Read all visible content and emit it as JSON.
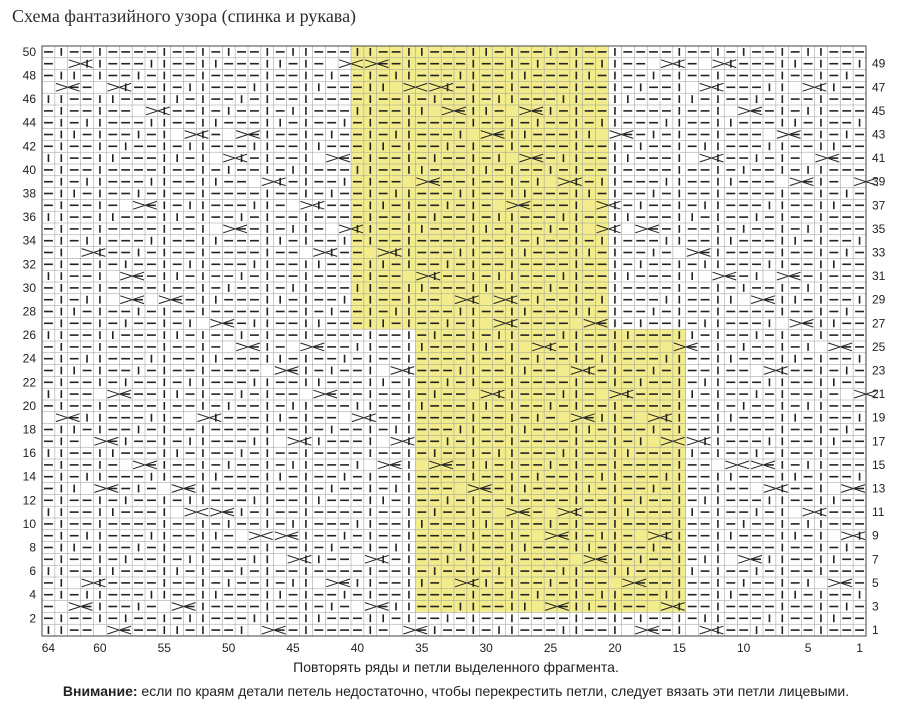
{
  "title": "Схема фантазийного узора (спинка и рукава)",
  "footer": {
    "line1": "Повторять ряды и петли выделенного фрагмента.",
    "attention_label": "Внимание:",
    "attention_text": " если по краям детали петель недостаточно, чтобы перекрестить петли, следует вязать эти петли лицевыми."
  },
  "grid": {
    "stitches": 64,
    "rows": 50,
    "highlight_color": "#f3ec8c",
    "highlight_regions": [
      {
        "stitch_from": 21,
        "stitch_to": 40,
        "row_from": 27,
        "row_to": 50
      },
      {
        "stitch_from": 15,
        "stitch_to": 35,
        "row_from": 3,
        "row_to": 26
      }
    ]
  },
  "axes": {
    "left_row_labels": [
      "50",
      "48",
      "46",
      "44",
      "42",
      "40",
      "38",
      "36",
      "34",
      "32",
      "30",
      "28",
      "26",
      "24",
      "22",
      "20",
      "18",
      "16",
      "14",
      "12",
      "10",
      "8",
      "6",
      "4",
      "2"
    ],
    "right_row_labels": [
      "49",
      "47",
      "45",
      "43",
      "41",
      "39",
      "37",
      "35",
      "33",
      "31",
      "29",
      "27",
      "25",
      "23",
      "21",
      "19",
      "17",
      "15",
      "13",
      "11",
      "9",
      "7",
      "5",
      "3",
      "1"
    ],
    "bottom_stitch_labels": [
      "64",
      "60",
      "55",
      "50",
      "45",
      "40",
      "35",
      "30",
      "25",
      "20",
      "15",
      "10",
      "5",
      "1"
    ]
  },
  "legend_symbols": {
    "dash": "purl-dash",
    "vertical": "knit-bar",
    "cross": "cable-cross"
  }
}
